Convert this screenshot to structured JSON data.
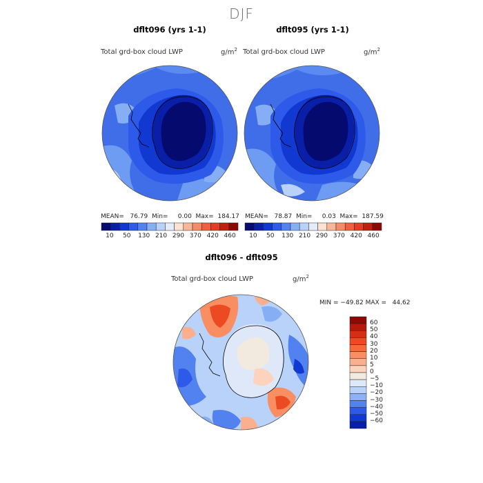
{
  "page": {
    "season": "DJF"
  },
  "panels": [
    {
      "title": "dflt096 (yrs 1-1)",
      "variable": "Total grd-box cloud LWP",
      "units_base": "g/m",
      "units_exp": "2",
      "stats": "MEAN=   76.79  Min=     0.00  Max=  184.17"
    },
    {
      "title": "dflt095 (yrs 1-1)",
      "variable": "Total grd-box cloud LWP",
      "units_base": "g/m",
      "units_exp": "2",
      "stats": "MEAN=   78.87  Min=     0.03  Max=  187.59"
    },
    {
      "title": "dflt096 - dflt095",
      "variable": "Total grd-box cloud LWP",
      "units_base": "g/m",
      "units_exp": "2",
      "stats": "MIN = −49.82 MAX =   44.62"
    }
  ],
  "chart_data": [
    {
      "type": "heatmap",
      "projection": "south-polar-stereographic",
      "title": "dflt096 (yrs 1-1)",
      "colorbar_levels": [
        "10",
        "50",
        "130",
        "210",
        "290",
        "370",
        "420",
        "460"
      ],
      "colorbar_colors": [
        "#050a6e",
        "#0a1fa8",
        "#1238d2",
        "#2d5ae8",
        "#5282f0",
        "#86aef5",
        "#b9d2fa",
        "#e3ecfb",
        "#fde2d2",
        "#f9b797",
        "#f48d67",
        "#ee6140",
        "#e03e25",
        "#c0210f",
        "#8b0a06"
      ],
      "mean": 76.79,
      "min": 0.0,
      "max": 184.17
    },
    {
      "type": "heatmap",
      "projection": "south-polar-stereographic",
      "title": "dflt095 (yrs 1-1)",
      "colorbar_levels": [
        "10",
        "50",
        "130",
        "210",
        "290",
        "370",
        "420",
        "460"
      ],
      "colorbar_colors": [
        "#050a6e",
        "#0a1fa8",
        "#1238d2",
        "#2d5ae8",
        "#5282f0",
        "#86aef5",
        "#b9d2fa",
        "#e3ecfb",
        "#fde2d2",
        "#f9b797",
        "#f48d67",
        "#ee6140",
        "#e03e25",
        "#c0210f",
        "#8b0a06"
      ],
      "mean": 78.87,
      "min": 0.03,
      "max": 187.59
    },
    {
      "type": "heatmap",
      "projection": "south-polar-stereographic",
      "title": "dflt096 - dflt095",
      "colorbar_levels": [
        "60",
        "50",
        "40",
        "30",
        "20",
        "10",
        "5",
        "0",
        "−5",
        "−10",
        "−20",
        "−30",
        "−40",
        "−50",
        "−60"
      ],
      "colorbar_colors": [
        "#8b0a06",
        "#b5190c",
        "#d62e15",
        "#ec4a23",
        "#f56a3a",
        "#f88e62",
        "#fab08f",
        "#fdd3bd",
        "#f2eadf",
        "#dfe8f8",
        "#b9d2fa",
        "#8cb2f5",
        "#5282f0",
        "#2d5ae8",
        "#1238d2",
        "#0a1fa8"
      ],
      "min": -49.82,
      "max": 44.62
    }
  ]
}
